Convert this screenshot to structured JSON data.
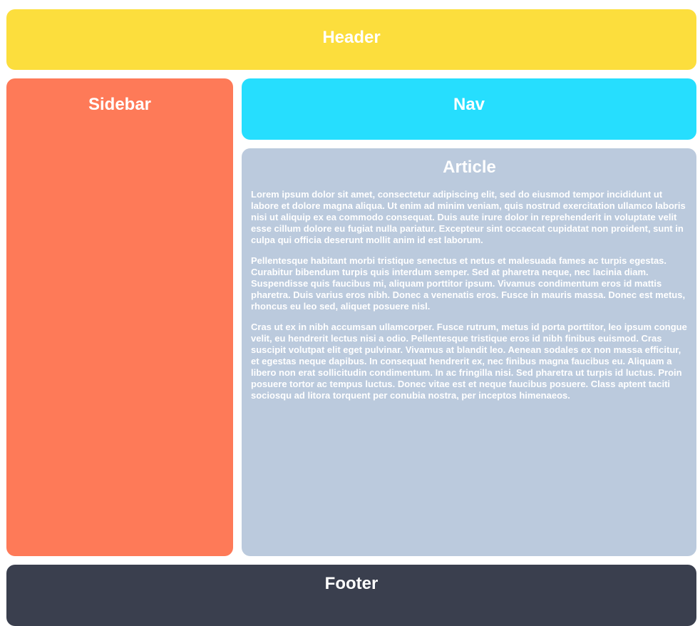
{
  "colors": {
    "header": "#FCDE3D",
    "sidebar": "#FE7A58",
    "nav": "#26DEFE",
    "article": "#BBCADD",
    "footer": "#3A3F4E",
    "text": "#FFFFFF"
  },
  "header": {
    "title": "Header"
  },
  "sidebar": {
    "title": "Sidebar"
  },
  "nav": {
    "title": "Nav"
  },
  "article": {
    "title": "Article",
    "paragraphs": [
      "Lorem ipsum dolor sit amet, consectetur adipiscing elit, sed do eiusmod tempor incididunt ut labore et dolore magna aliqua. Ut enim ad minim veniam, quis nostrud exercitation ullamco laboris nisi ut aliquip ex ea commodo consequat. Duis aute irure dolor in reprehenderit in voluptate velit esse cillum dolore eu fugiat nulla pariatur. Excepteur sint occaecat cupidatat non proident, sunt in culpa qui officia deserunt mollit anim id est laborum.",
      "Pellentesque habitant morbi tristique senectus et netus et malesuada fames ac turpis egestas. Curabitur bibendum turpis quis interdum semper. Sed at pharetra neque, nec lacinia diam. Suspendisse quis faucibus mi, aliquam porttitor ipsum. Vivamus condimentum eros id mattis pharetra. Duis varius eros nibh. Donec a venenatis eros. Fusce in mauris massa. Donec est metus, rhoncus eu leo sed, aliquet posuere nisl.",
      "Cras ut ex in nibh accumsan ullamcorper. Fusce rutrum, metus id porta porttitor, leo ipsum congue velit, eu hendrerit lectus nisi a odio. Pellentesque tristique eros id nibh finibus euismod. Cras suscipit volutpat elit eget pulvinar. Vivamus at blandit leo. Aenean sodales ex non massa efficitur, et egestas neque dapibus. In consequat hendrerit ex, nec finibus magna faucibus eu. Aliquam a libero non erat sollicitudin condimentum. In ac fringilla nisi. Sed pharetra ut turpis id luctus. Proin posuere tortor ac tempus luctus. Donec vitae est et neque faucibus posuere. Class aptent taciti sociosqu ad litora torquent per conubia nostra, per inceptos himenaeos."
    ]
  },
  "footer": {
    "title": "Footer"
  }
}
